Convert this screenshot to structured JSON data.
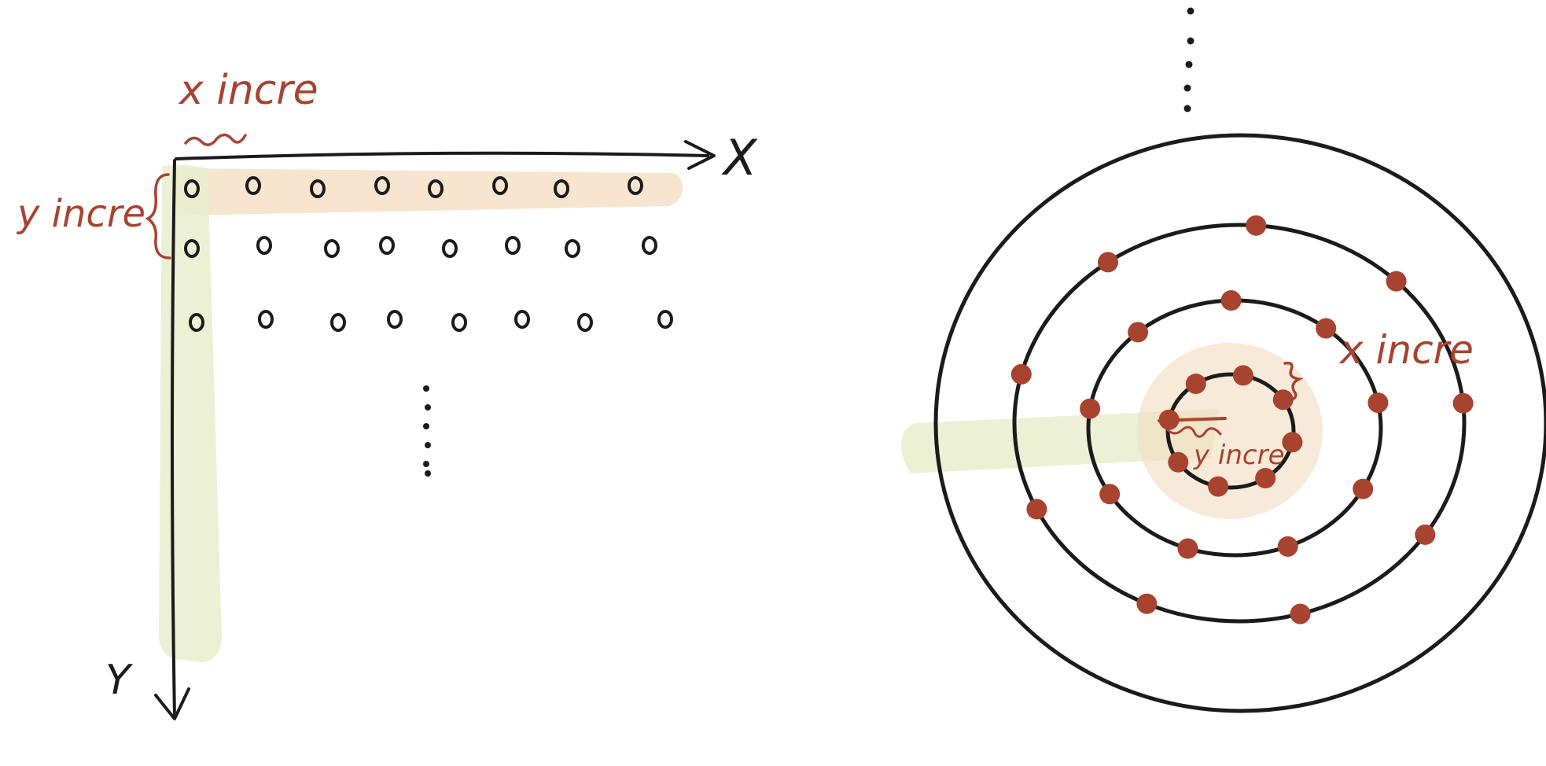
{
  "labels": {
    "x_axis": "X",
    "y_axis": "Y",
    "x_incre_grid": "x incre",
    "y_incre_grid": "y incre",
    "x_incre_polar": "x incre",
    "y_incre_polar": "y incre"
  },
  "colors": {
    "ink": "#1b1b1b",
    "accent": "#a8432f",
    "highlight_orange": "#f4dcc0",
    "highlight_green": "#e9efcf"
  }
}
